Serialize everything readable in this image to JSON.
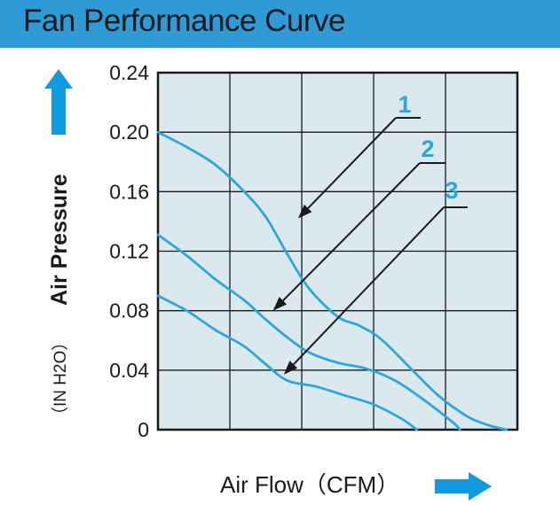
{
  "header": {
    "title": "Fan Performance Curve"
  },
  "colors": {
    "header_bg": "#2e9ad6",
    "plot_bg": "#dbe9ef",
    "curve": "#29a8e0",
    "arrow_icon": "#109be0",
    "grid": "#1a1a1a"
  },
  "chart_data": {
    "type": "line",
    "title": "Fan Performance Curve",
    "ylabel": "Air Pressure",
    "yunit": "（IN H2O）",
    "xlabel": "Air Flow（CFM）",
    "ylim": [
      0,
      0.24
    ],
    "yticks": [
      "0.24",
      "0.20",
      "0.16",
      "0.12",
      "0.08",
      "0.04",
      "0"
    ],
    "ytick_values": [
      0.24,
      0.2,
      0.16,
      0.12,
      0.08,
      0.04,
      0
    ],
    "xlim": [
      0,
      5
    ],
    "x_gridlines": 5,
    "x_tick_labels_shown": false,
    "grid": true,
    "series": [
      {
        "name": "1",
        "x": [
          0,
          0.4,
          0.8,
          1.2,
          1.5,
          1.8,
          2.1,
          2.5,
          2.8,
          3.1,
          3.5,
          3.9,
          4.3,
          4.6,
          4.85
        ],
        "y": [
          0.2,
          0.19,
          0.178,
          0.16,
          0.143,
          0.118,
          0.095,
          0.076,
          0.07,
          0.061,
          0.042,
          0.023,
          0.009,
          0.003,
          0.0
        ]
      },
      {
        "name": "2",
        "x": [
          0,
          0.4,
          0.8,
          1.2,
          1.5,
          1.8,
          2.1,
          2.5,
          2.9,
          3.3,
          3.7,
          4.1,
          4.2
        ],
        "y": [
          0.131,
          0.117,
          0.101,
          0.087,
          0.074,
          0.062,
          0.052,
          0.045,
          0.041,
          0.033,
          0.02,
          0.005,
          0.0
        ]
      },
      {
        "name": "3",
        "x": [
          0,
          0.4,
          0.8,
          1.2,
          1.5,
          1.8,
          2.2,
          2.6,
          3.0,
          3.4,
          3.6
        ],
        "y": [
          0.09,
          0.08,
          0.067,
          0.056,
          0.044,
          0.033,
          0.029,
          0.023,
          0.017,
          0.007,
          0.0
        ]
      }
    ],
    "annotations": [
      {
        "label": "1",
        "series": "1",
        "point": [
          1.95,
          0.142
        ]
      },
      {
        "label": "2",
        "series": "2",
        "point": [
          1.6,
          0.08
        ]
      },
      {
        "label": "3",
        "series": "3",
        "point": [
          1.75,
          0.037
        ]
      }
    ]
  }
}
